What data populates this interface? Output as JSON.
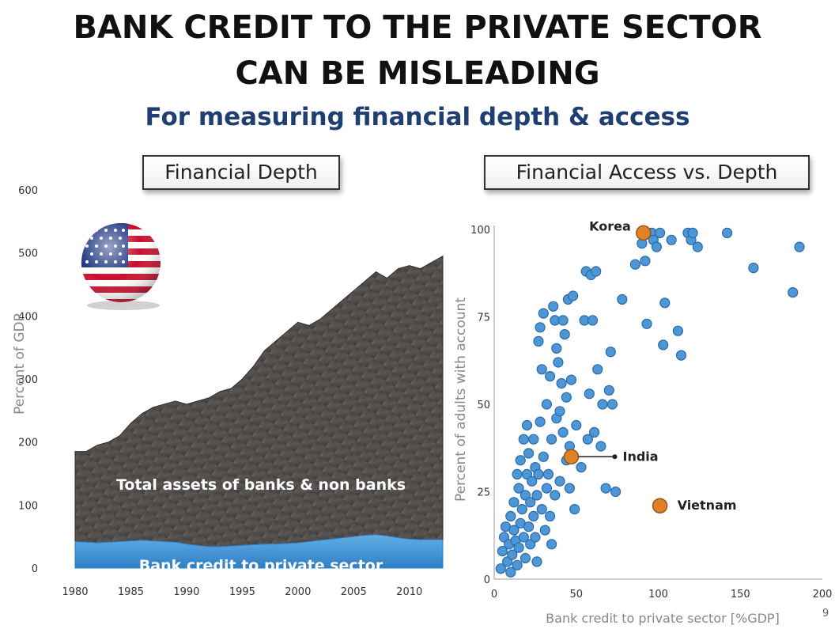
{
  "title_line1": "BANK CREDIT TO THE PRIVATE SECTOR",
  "title_line2": "CAN BE MISLEADING",
  "subtitle": "For measuring financial depth & access",
  "page_number": "9",
  "colors": {
    "title": "#111111",
    "subtitle": "#1f3f73",
    "total_assets_area": "#474747",
    "bank_credit_area": "#3f8fd2",
    "scatter_point": "#4e97d6",
    "highlight_point": "#e0812a"
  },
  "icons": [
    "us-flag-icon"
  ],
  "chart_data": [
    {
      "type": "area",
      "panel_label": "Financial Depth",
      "title": "",
      "xlabel": "",
      "ylabel": "Percent of GDP",
      "xlim": [
        1980,
        2013
      ],
      "ylim": [
        0,
        600
      ],
      "x_ticks": [
        1980,
        1985,
        1990,
        1995,
        2000,
        2005,
        2010
      ],
      "y_ticks": [
        0,
        100,
        200,
        300,
        400,
        500,
        600
      ],
      "grid": false,
      "x": [
        1980,
        1981,
        1982,
        1983,
        1984,
        1985,
        1986,
        1987,
        1988,
        1989,
        1990,
        1991,
        1992,
        1993,
        1994,
        1995,
        1996,
        1997,
        1998,
        1999,
        2000,
        2001,
        2002,
        2003,
        2004,
        2005,
        2006,
        2007,
        2008,
        2009,
        2010,
        2011,
        2012,
        2013
      ],
      "series": [
        {
          "name": "Total assets of banks & non banks",
          "values": [
            185,
            185,
            195,
            200,
            210,
            230,
            245,
            255,
            260,
            265,
            260,
            265,
            270,
            280,
            285,
            300,
            320,
            345,
            360,
            375,
            390,
            385,
            395,
            410,
            425,
            440,
            455,
            470,
            460,
            475,
            480,
            475,
            485,
            495
          ]
        },
        {
          "name": "Bank credit to private sector",
          "values": [
            42,
            41,
            40,
            41,
            42,
            43,
            44,
            43,
            42,
            41,
            38,
            36,
            34,
            34,
            35,
            36,
            37,
            38,
            38,
            39,
            40,
            42,
            44,
            46,
            48,
            50,
            52,
            53,
            51,
            48,
            46,
            45,
            45,
            45
          ]
        }
      ]
    },
    {
      "type": "scatter",
      "panel_label": "Financial Access vs. Depth",
      "title": "",
      "xlabel": "Bank credit to private sector [%GDP]",
      "ylabel": "Percent of adults with account",
      "xlim": [
        0,
        200
      ],
      "ylim": [
        0,
        100
      ],
      "x_ticks": [
        0,
        50,
        100,
        150,
        200
      ],
      "y_ticks": [
        0,
        25,
        50,
        75,
        100
      ],
      "grid": false,
      "highlighted": [
        {
          "label": "Korea",
          "x": 91,
          "y": 99
        },
        {
          "label": "India",
          "x": 47,
          "y": 35
        },
        {
          "label": "Vietnam",
          "x": 101,
          "y": 21
        }
      ],
      "points": [
        [
          4,
          3
        ],
        [
          5,
          8
        ],
        [
          6,
          12
        ],
        [
          7,
          15
        ],
        [
          8,
          5
        ],
        [
          9,
          10
        ],
        [
          10,
          2
        ],
        [
          10,
          18
        ],
        [
          11,
          7
        ],
        [
          12,
          14
        ],
        [
          12,
          22
        ],
        [
          13,
          11
        ],
        [
          14,
          30
        ],
        [
          14,
          4
        ],
        [
          15,
          9
        ],
        [
          15,
          26
        ],
        [
          16,
          16
        ],
        [
          16,
          34
        ],
        [
          17,
          20
        ],
        [
          18,
          12
        ],
        [
          18,
          40
        ],
        [
          19,
          24
        ],
        [
          19,
          6
        ],
        [
          20,
          30
        ],
        [
          20,
          44
        ],
        [
          21,
          15
        ],
        [
          21,
          36
        ],
        [
          22,
          22
        ],
        [
          22,
          10
        ],
        [
          23,
          28
        ],
        [
          24,
          18
        ],
        [
          24,
          40
        ],
        [
          25,
          32
        ],
        [
          25,
          12
        ],
        [
          26,
          24
        ],
        [
          26,
          5
        ],
        [
          27,
          30
        ],
        [
          27,
          68
        ],
        [
          28,
          72
        ],
        [
          28,
          45
        ],
        [
          29,
          20
        ],
        [
          29,
          60
        ],
        [
          30,
          76
        ],
        [
          30,
          35
        ],
        [
          31,
          14
        ],
        [
          32,
          26
        ],
        [
          32,
          50
        ],
        [
          33,
          30
        ],
        [
          34,
          18
        ],
        [
          34,
          58
        ],
        [
          35,
          10
        ],
        [
          35,
          40
        ],
        [
          36,
          78
        ],
        [
          37,
          74
        ],
        [
          37,
          24
        ],
        [
          38,
          46
        ],
        [
          38,
          66
        ],
        [
          39,
          62
        ],
        [
          40,
          48
        ],
        [
          40,
          28
        ],
        [
          41,
          56
        ],
        [
          42,
          42
        ],
        [
          42,
          74
        ],
        [
          43,
          70
        ],
        [
          44,
          34
        ],
        [
          44,
          52
        ],
        [
          45,
          80
        ],
        [
          46,
          26
        ],
        [
          46,
          38
        ],
        [
          47,
          57
        ],
        [
          48,
          81
        ],
        [
          49,
          20
        ],
        [
          50,
          44
        ],
        [
          53,
          32
        ],
        [
          55,
          74
        ],
        [
          56,
          88
        ],
        [
          57,
          40
        ],
        [
          58,
          53
        ],
        [
          59,
          87
        ],
        [
          60,
          74
        ],
        [
          61,
          42
        ],
        [
          62,
          88
        ],
        [
          63,
          60
        ],
        [
          65,
          38
        ],
        [
          66,
          50
        ],
        [
          68,
          26
        ],
        [
          70,
          54
        ],
        [
          71,
          65
        ],
        [
          72,
          50
        ],
        [
          74,
          25
        ],
        [
          78,
          80
        ],
        [
          86,
          90
        ],
        [
          90,
          96
        ],
        [
          92,
          91
        ],
        [
          93,
          73
        ],
        [
          96,
          99
        ],
        [
          97,
          97
        ],
        [
          99,
          95
        ],
        [
          101,
          99
        ],
        [
          103,
          67
        ],
        [
          104,
          79
        ],
        [
          108,
          97
        ],
        [
          112,
          71
        ],
        [
          114,
          64
        ],
        [
          118,
          99
        ],
        [
          120,
          97
        ],
        [
          121,
          99
        ],
        [
          124,
          95
        ],
        [
          142,
          99
        ],
        [
          158,
          89
        ],
        [
          182,
          82
        ],
        [
          186,
          95
        ]
      ]
    }
  ]
}
